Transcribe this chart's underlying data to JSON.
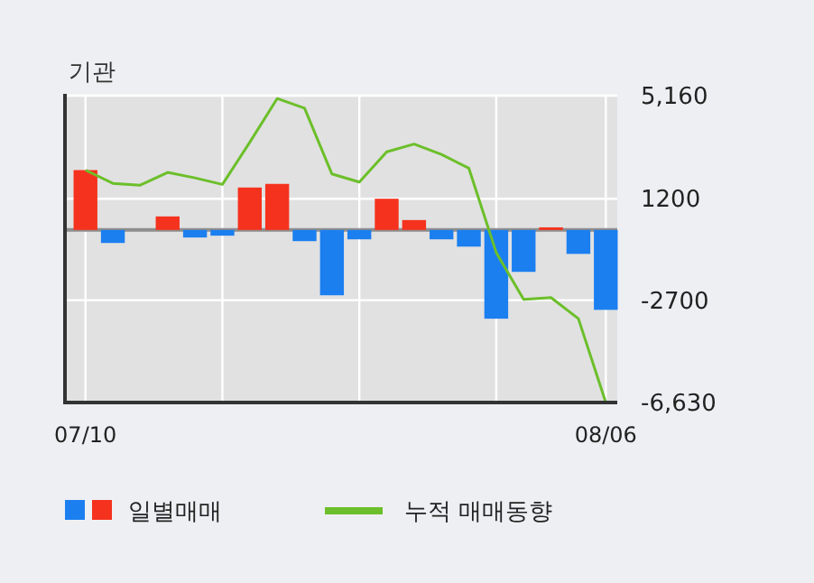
{
  "chart_data": {
    "type": "bar",
    "title": "기관",
    "categories": [
      "07/10",
      null,
      null,
      null,
      null,
      null,
      null,
      null,
      null,
      null,
      null,
      null,
      null,
      null,
      null,
      null,
      null,
      null,
      null,
      "08/06"
    ],
    "series": [
      {
        "name": "일별매매",
        "colors": [
          "#f5321e",
          "#1b7ff0",
          "#f5321e",
          "#f5321e",
          "#1b7ff0",
          "#1b7ff0",
          "#f5321e",
          "#f5321e",
          "#1b7ff0",
          "#1b7ff0",
          "#1b7ff0",
          "#f5321e",
          "#f5321e",
          "#1b7ff0",
          "#1b7ff0",
          "#1b7ff0",
          "#1b7ff0",
          "#f5321e",
          "#1b7ff0",
          "#1b7ff0"
        ],
        "values": [
          2300,
          -500,
          0,
          520,
          -290,
          -220,
          1630,
          1770,
          -430,
          -2510,
          -360,
          1200,
          380,
          -360,
          -640,
          -3410,
          -1610,
          100,
          -920,
          -3070
        ]
      },
      {
        "name": "누적 매매동향",
        "type": "line",
        "color": "#6cbf2a",
        "values": [
          2300,
          1790,
          1720,
          2210,
          2000,
          1750,
          3370,
          5050,
          4680,
          2150,
          1840,
          3000,
          3300,
          2900,
          2370,
          -870,
          -2670,
          -2600,
          -3410,
          -6630
        ]
      }
    ],
    "ylim": [
      -6630,
      5160
    ],
    "yticks": [
      {
        "value": 5160,
        "label": "5,160"
      },
      1200,
      -2700,
      {
        "value": -6630,
        "label": "-6,630"
      }
    ],
    "grid": true,
    "legend": "bottom"
  }
}
